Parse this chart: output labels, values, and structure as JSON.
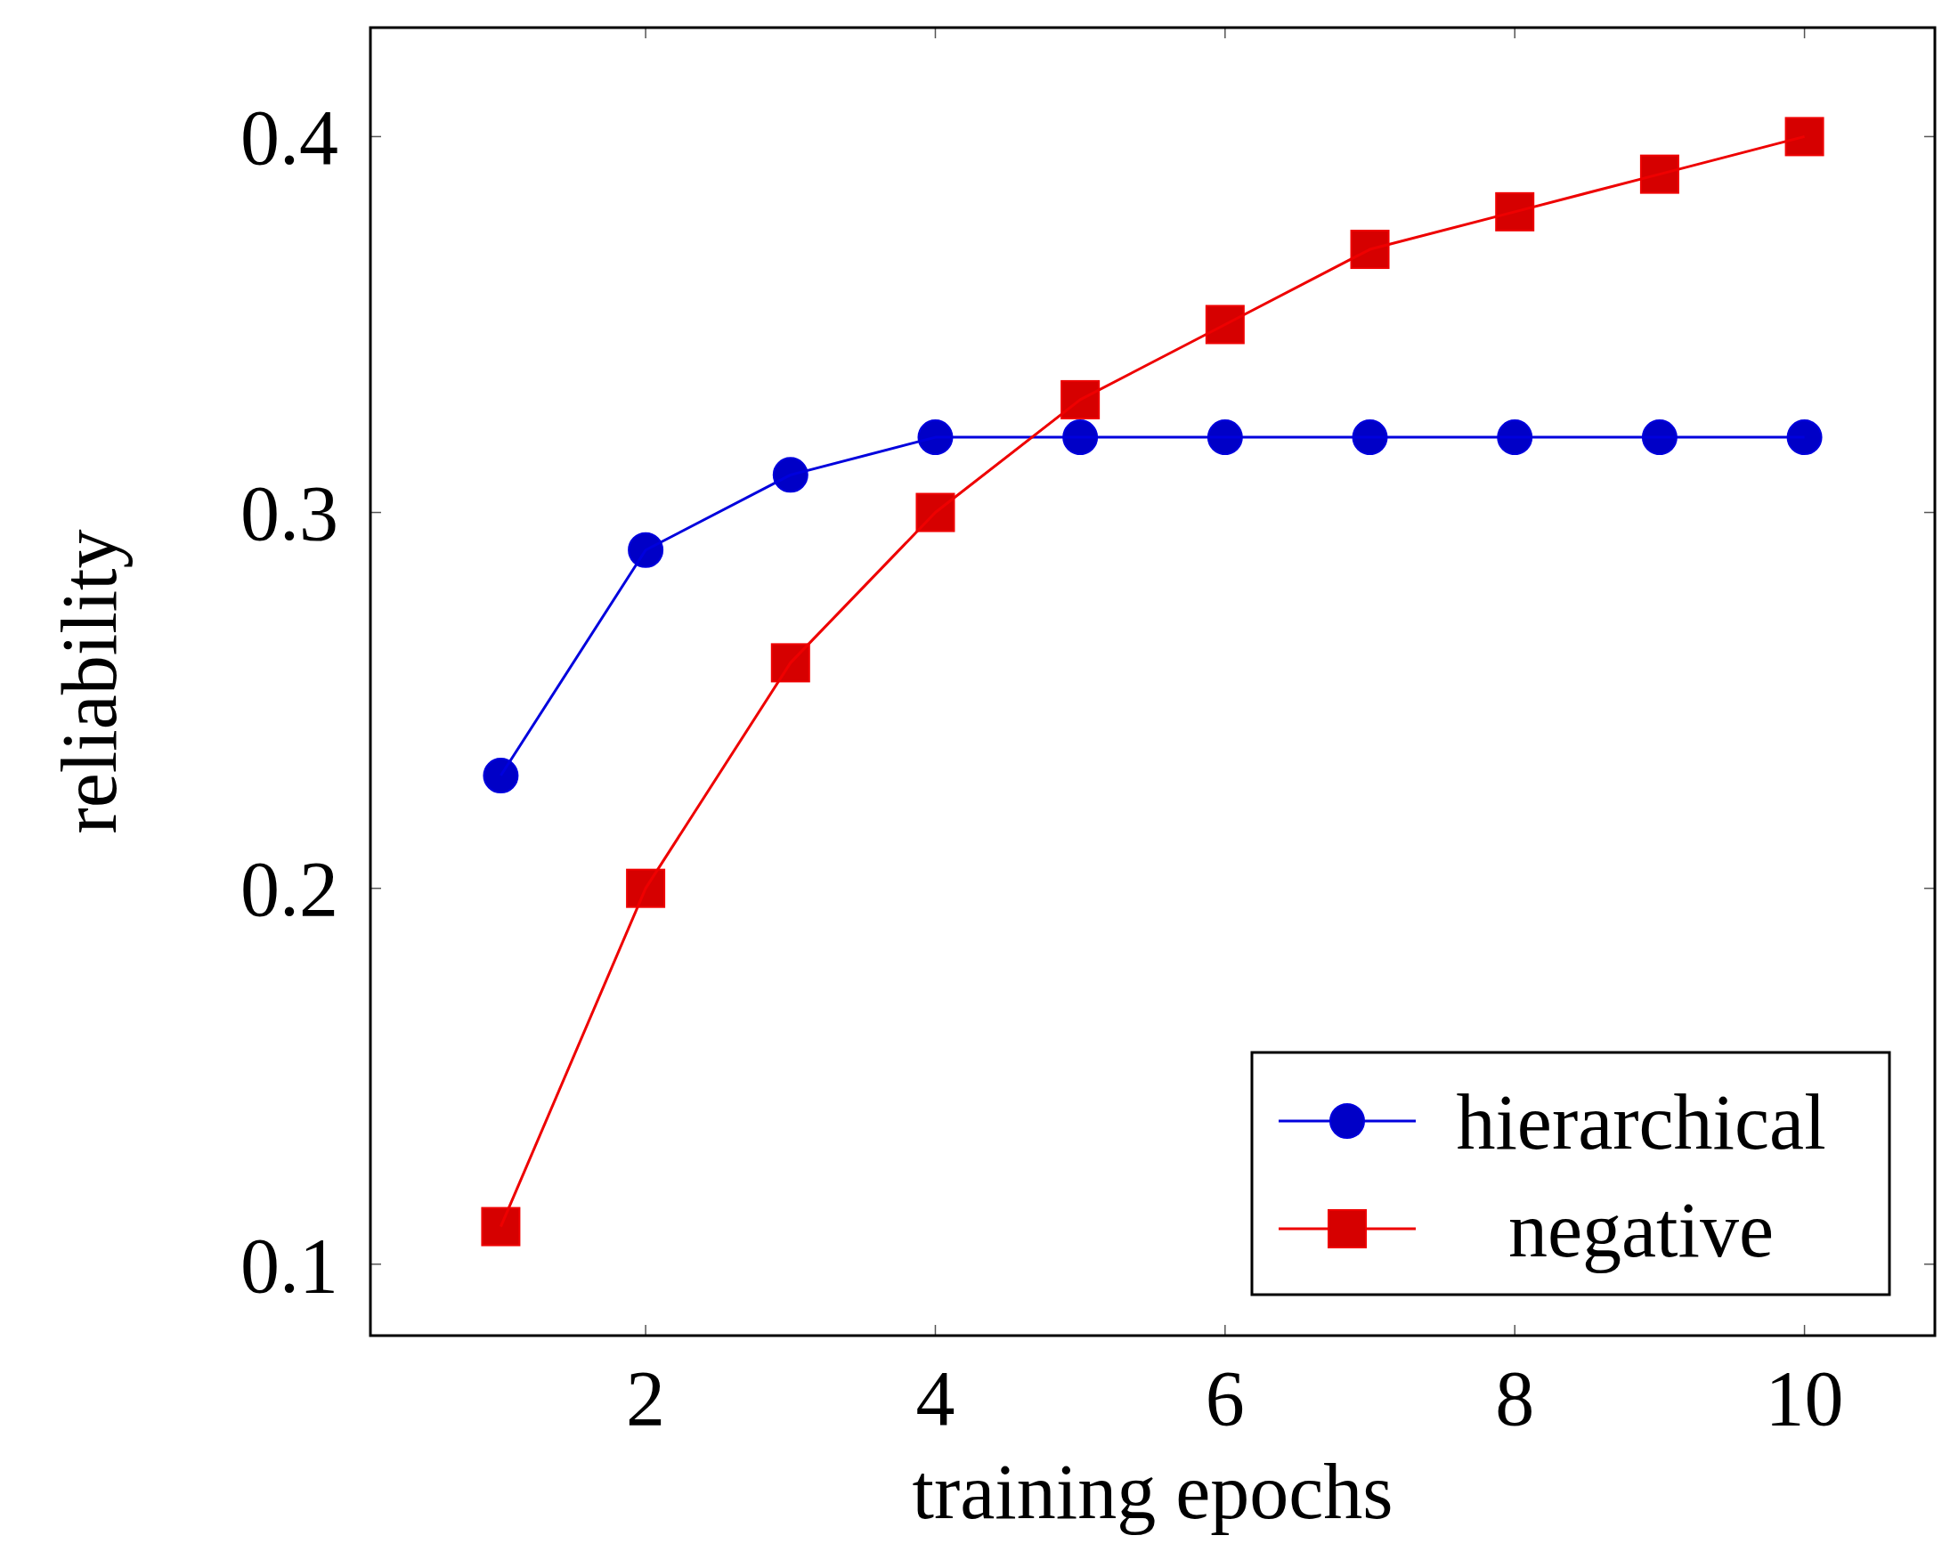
{
  "chart_data": {
    "type": "line",
    "xlabel": "training epochs",
    "ylabel": "reliability",
    "x": [
      1,
      2,
      3,
      4,
      5,
      6,
      7,
      8,
      9,
      10
    ],
    "series": [
      {
        "name": "hierarchical",
        "color": "#0000dd",
        "marker": "circle",
        "values": [
          0.23,
          0.29,
          0.31,
          0.32,
          0.32,
          0.32,
          0.32,
          0.32,
          0.32,
          0.32
        ]
      },
      {
        "name": "negative",
        "color": "#ee0000",
        "marker": "square",
        "values": [
          0.11,
          0.2,
          0.26,
          0.3,
          0.33,
          0.35,
          0.37,
          0.38,
          0.39,
          0.4
        ]
      }
    ],
    "xlim": [
      0.1,
      10.9
    ],
    "xticks": [
      2,
      4,
      6,
      8,
      10
    ],
    "ylim": [
      0.081,
      0.429
    ],
    "yticks": [
      0.1,
      0.2,
      0.3,
      0.4
    ],
    "grid": false,
    "legend": "bottom right",
    "line_style": "solid"
  }
}
